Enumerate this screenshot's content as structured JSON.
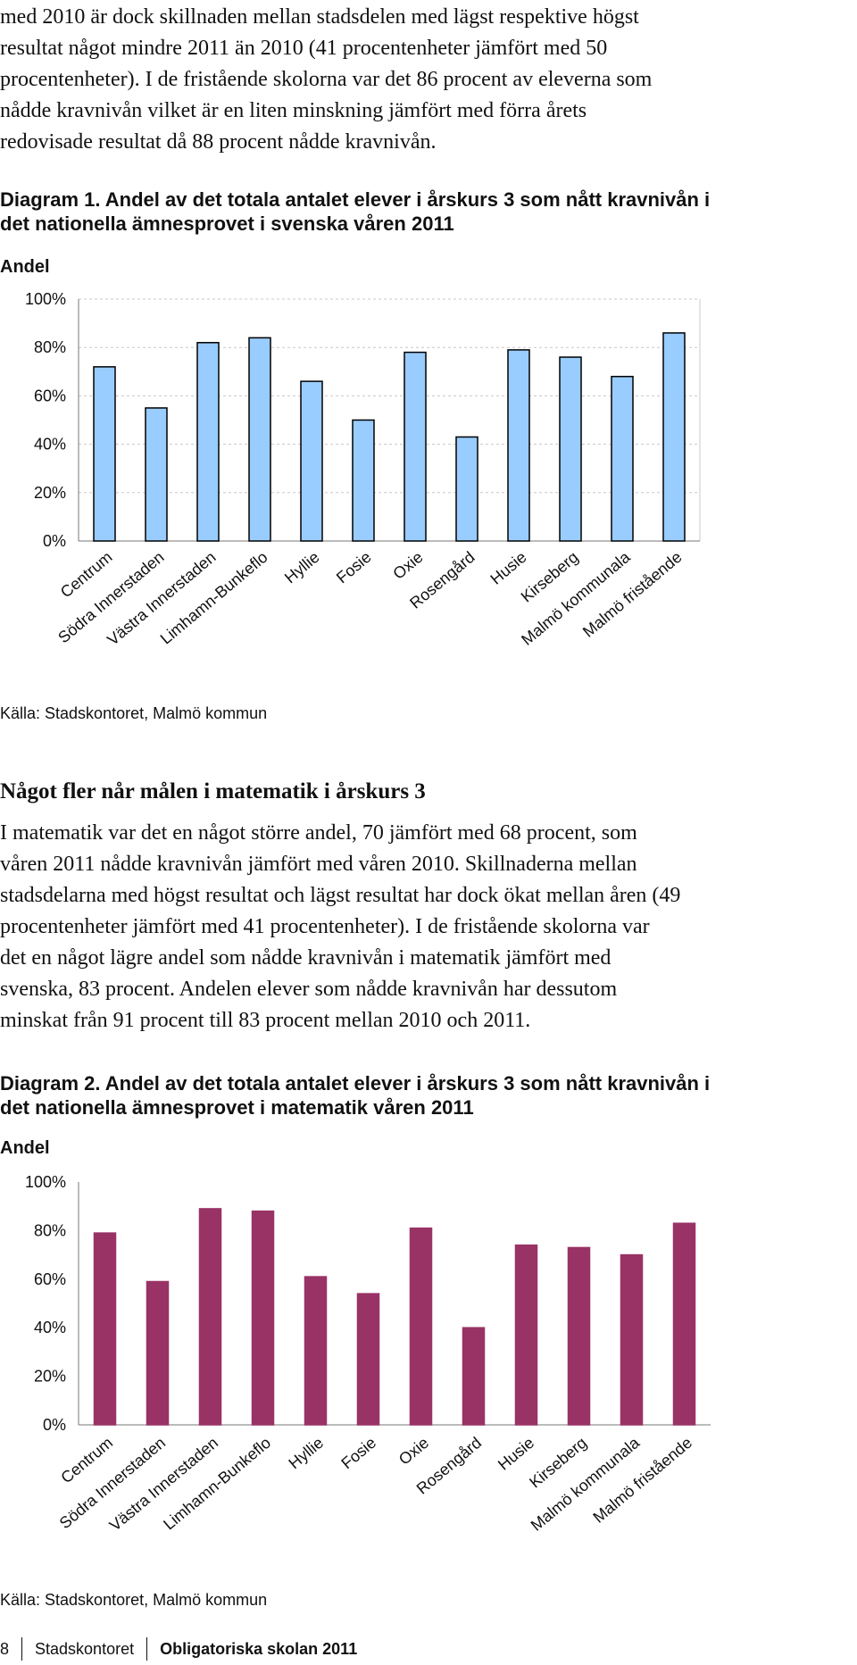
{
  "intro": {
    "lines": [
      "med 2010 är dock skillnaden mellan stadsdelen med lägst respektive högst",
      "resultat något mindre 2011 än 2010 (41 procentenheter jämfört med 50",
      "procentenheter). I de fristående skolorna var det 86 procent av eleverna som",
      "nådde kravnivån vilket är en liten minskning jämfört med förra årets",
      "redovisade resultat då 88 procent nådde kravnivån."
    ]
  },
  "diagram1": {
    "caption_line1": "Diagram 1. Andel av det totala antalet elever i årskurs 3 som nått kravnivån i",
    "caption_line2": "det nationella ämnesprovet i svenska våren 2011",
    "ylabel": "Andel",
    "source": "Källa: Stadskontoret, Malmö kommun",
    "colors": {
      "bar": "#99ccff",
      "stroke": "#000000"
    }
  },
  "section2": {
    "heading": "Något fler når målen i matematik i årskurs 3",
    "lines": [
      "I matematik var det en något större andel, 70 jämfört med 68 procent, som",
      "våren 2011 nådde kravnivån jämfört med våren 2010. Skillnaderna mellan",
      "stadsdelarna med högst resultat och lägst resultat har dock ökat mellan åren (49",
      "procentenheter jämfört med 41 procentenheter). I de fristående skolorna var",
      "det en något lägre andel som nådde kravnivån i matematik jämfört med",
      "svenska, 83 procent. Andelen elever som nådde kravnivån har dessutom",
      "minskat från 91 procent till 83 procent mellan 2010 och 2011."
    ]
  },
  "diagram2": {
    "caption_line1": "Diagram 2. Andel av det totala antalet elever i årskurs 3 som nått kravnivån i",
    "caption_line2": "det nationella ämnesprovet i matematik våren 2011",
    "ylabel": "Andel",
    "source": "Källa: Stadskontoret, Malmö kommun",
    "colors": {
      "bar": "#993366",
      "stroke": "#993366"
    }
  },
  "footer": {
    "page_number": "8",
    "org": "Stadskontoret",
    "doc": "Obligatoriska skolan 2011"
  },
  "chart_data": [
    {
      "type": "bar",
      "categories": [
        "Centrum",
        "Södra Innerstaden",
        "Västra Innerstaden",
        "Limhamn-Bunkeflo",
        "Hyllie",
        "Fosie",
        "Oxie",
        "Rosengård",
        "Husie",
        "Kirseberg",
        "Malmö kommunala",
        "Malmö fristående"
      ],
      "values": [
        72,
        55,
        82,
        84,
        66,
        50,
        78,
        43,
        79,
        76,
        68,
        86
      ],
      "ylim": [
        0,
        100
      ],
      "yticks": [
        "0%",
        "20%",
        "40%",
        "60%",
        "80%",
        "100%"
      ],
      "ylabel": "Andel",
      "grid": true
    },
    {
      "type": "bar",
      "categories": [
        "Centrum",
        "Södra Innerstaden",
        "Västra Innerstaden",
        "Limhamn-Bunkeflo",
        "Hyllie",
        "Fosie",
        "Oxie",
        "Rosengård",
        "Husie",
        "Kirseberg",
        "Malmö kommunala",
        "Malmö fristående"
      ],
      "values": [
        79,
        59,
        89,
        88,
        61,
        54,
        81,
        40,
        74,
        73,
        70,
        83
      ],
      "ylim": [
        0,
        100
      ],
      "yticks": [
        "0%",
        "20%",
        "40%",
        "60%",
        "80%",
        "100%"
      ],
      "ylabel": "Andel",
      "grid": false
    }
  ]
}
